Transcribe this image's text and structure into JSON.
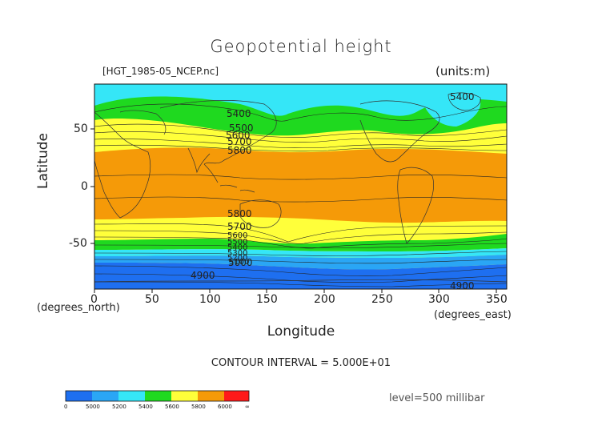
{
  "title": "Geopotential height",
  "file_label": "[HGT_1985-05_NCEP.nc]",
  "units_label": "(units:m)",
  "axes": {
    "ylabel": "Latitude",
    "xlabel": "Longitude",
    "x_ticks": [
      "0",
      "50",
      "100",
      "150",
      "200",
      "250",
      "300",
      "350"
    ],
    "y_ticks": [
      "50",
      "0",
      "-50"
    ],
    "x_note": "(degrees_north)",
    "x_note2": "(degrees_east)"
  },
  "contour_interval": "CONTOUR INTERVAL = 5.000E+01",
  "level": "level=500 millibar",
  "contour_labels": [
    "5400",
    "5500",
    "5600",
    "5700",
    "5800",
    "5800",
    "5700",
    "5600",
    "5500",
    "5400",
    "5300",
    "5200",
    "5100",
    "5000",
    "4900",
    "4900",
    "5400"
  ],
  "colorbar": {
    "labels": [
      "0",
      "5000",
      "5200",
      "5400",
      "5600",
      "5800",
      "6000",
      "∞"
    ],
    "colors": [
      "#1e6ff0",
      "#2aa6f5",
      "#35e6f7",
      "#1fd91f",
      "#ffff3a",
      "#f59a08",
      "#ff1a1a"
    ]
  },
  "band_colors": {
    "deep_blue": "#1e6ff0",
    "mid_blue": "#2aa6f5",
    "cyan": "#35e6f7",
    "green": "#1fd91f",
    "yellow": "#ffff3a",
    "orange": "#f59a08"
  }
}
